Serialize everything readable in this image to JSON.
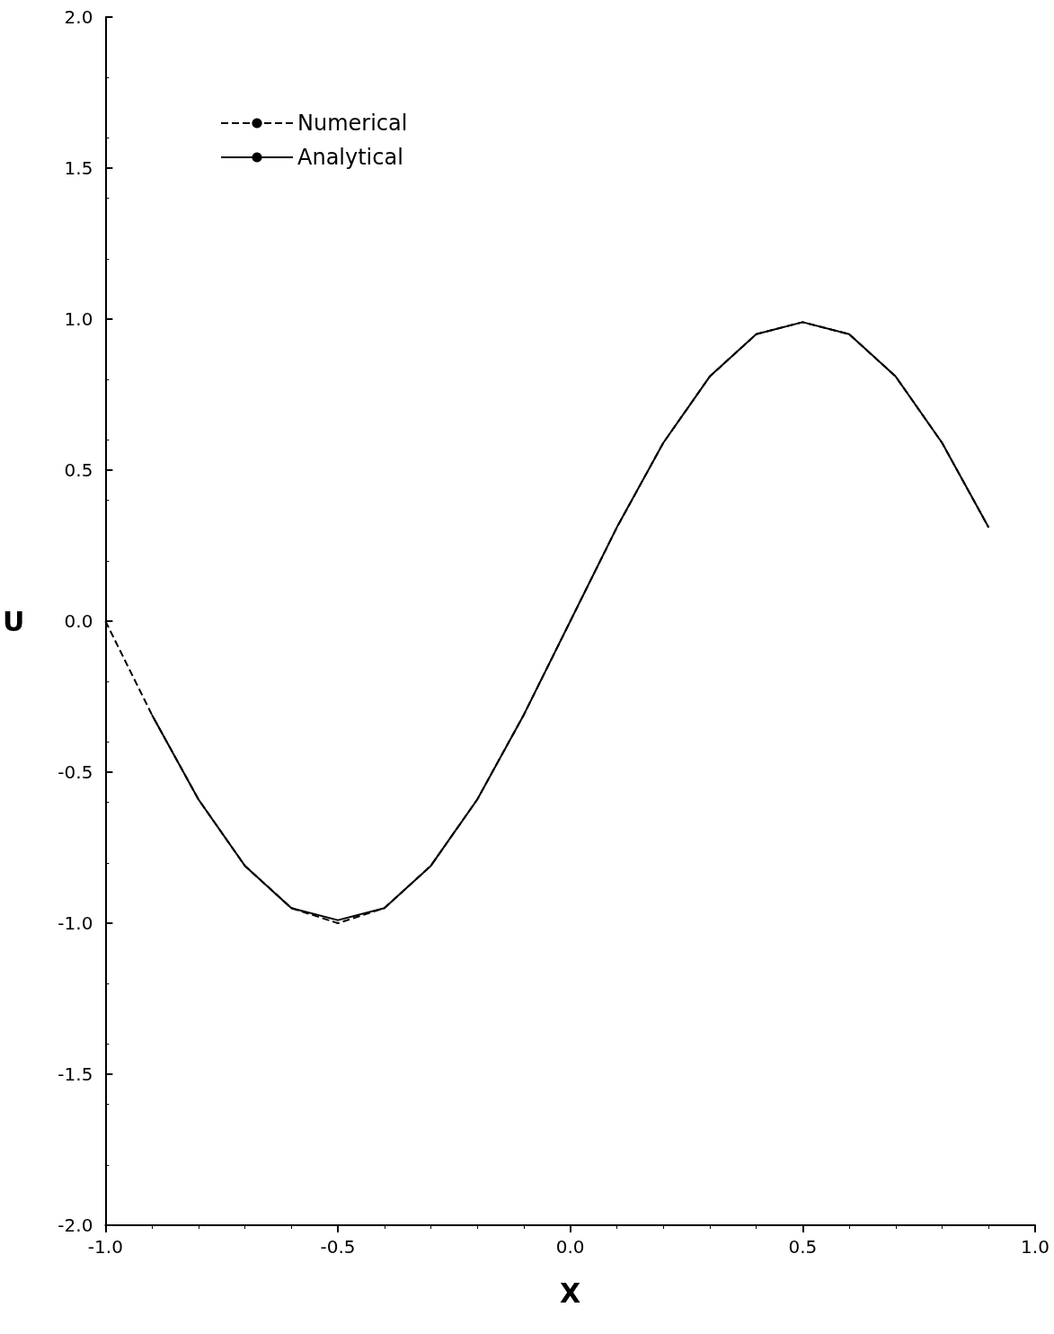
{
  "chart_data": {
    "type": "line",
    "xlabel": "X",
    "ylabel": "U",
    "xlim": [
      -1,
      1
    ],
    "xticks": [
      {
        "value": -1,
        "label": "-1.0"
      },
      {
        "value": -0.5,
        "label": "-0.5"
      },
      {
        "value": 0,
        "label": "0.0"
      },
      {
        "value": 0.5,
        "label": "0.5"
      },
      {
        "value": 1,
        "label": "1.0"
      }
    ],
    "ylim": [
      -2,
      2
    ],
    "yticks": [
      {
        "value": -2,
        "label": "-2.0"
      },
      {
        "value": -1.5,
        "label": "-1.5"
      },
      {
        "value": -1,
        "label": "-1.0"
      },
      {
        "value": -0.5,
        "label": "-0.5"
      },
      {
        "value": 0,
        "label": "0.0"
      },
      {
        "value": 0.5,
        "label": "0.5"
      },
      {
        "value": 1,
        "label": "1.0"
      },
      {
        "value": 1.5,
        "label": "1.5"
      },
      {
        "value": 2,
        "label": "2.0"
      }
    ],
    "grid": false,
    "legend": "top left",
    "marker": "none",
    "series": [
      {
        "name": "Numerical",
        "color": "#000000",
        "line_style": "dashed",
        "x": [
          -1,
          -0.9,
          -0.8,
          -0.7,
          -0.6,
          -0.5,
          -0.4,
          -0.3,
          -0.2,
          -0.1,
          0,
          0.1,
          0.2,
          0.3,
          0.4,
          0.5,
          0.6,
          0.7,
          0.8,
          0.9
        ],
        "values": [
          0,
          -0.31,
          -0.59,
          -0.81,
          -0.95,
          -1.0,
          -0.95,
          -0.81,
          -0.59,
          -0.31,
          0,
          0.31,
          0.59,
          0.81,
          0.95,
          0.99,
          0.95,
          0.81,
          0.59,
          0.31
        ]
      },
      {
        "name": "Analytical",
        "color": "#000000",
        "line_style": "solid",
        "x": [
          -0.9,
          -0.8,
          -0.7,
          -0.6,
          -0.5,
          -0.4,
          -0.3,
          -0.2,
          -0.1,
          0,
          0.1,
          0.2,
          0.3,
          0.4,
          0.5,
          0.6,
          0.7,
          0.8,
          0.9
        ],
        "values": [
          -0.31,
          -0.59,
          -0.81,
          -0.95,
          -0.99,
          -0.95,
          -0.81,
          -0.59,
          -0.31,
          0,
          0.31,
          0.59,
          0.81,
          0.95,
          0.99,
          0.95,
          0.81,
          0.59,
          0.31
        ]
      }
    ]
  }
}
